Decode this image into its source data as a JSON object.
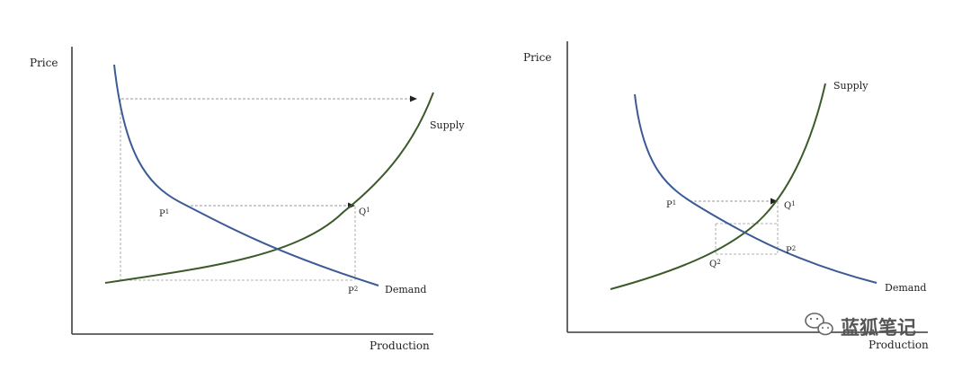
{
  "colors": {
    "supply": "#3c5a2a",
    "demand": "#3a5b96",
    "axis": "#555555",
    "guide": "#9a9a9a",
    "arrow": "#777777"
  },
  "left": {
    "y_axis_label": "Price",
    "x_axis_label": "Production",
    "supply_label": "Supply",
    "demand_label": "Demand",
    "p1": {
      "base": "P",
      "sup": "1"
    },
    "q1": {
      "base": "Q",
      "sup": "1"
    },
    "p2": {
      "base": "P",
      "sup": "2"
    }
  },
  "right": {
    "y_axis_label": "Price",
    "x_axis_label": "Production",
    "supply_label": "Supply",
    "demand_label": "Demand",
    "p1": {
      "base": "P",
      "sup": "1"
    },
    "q1": {
      "base": "Q",
      "sup": "1"
    },
    "p2": {
      "base": "P",
      "sup": "2"
    },
    "q2": {
      "base": "Q",
      "sup": "2"
    }
  },
  "watermark": {
    "icon": "wechat-icon",
    "text": "蓝狐笔记"
  }
}
